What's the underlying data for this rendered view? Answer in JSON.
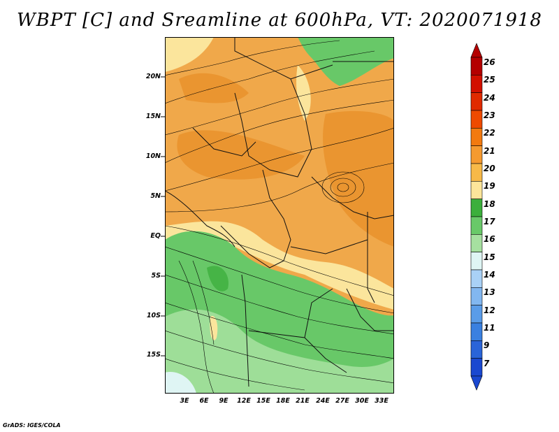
{
  "title": "WBPT [C] and Sreamline at 600hPa, VT: 2020071918",
  "credit": "GrADS: IGES/COLA",
  "map": {
    "lat_labels": [
      "20N",
      "15N",
      "10N",
      "5N",
      "EQ",
      "5S",
      "10S",
      "15S"
    ],
    "lon_labels": [
      "3E",
      "6E",
      "9E",
      "12E",
      "15E",
      "18E",
      "21E",
      "24E",
      "27E",
      "30E",
      "33E"
    ]
  },
  "colorbar": {
    "levels": [
      "26",
      "25",
      "24",
      "23",
      "22",
      "21",
      "20",
      "19",
      "18",
      "17",
      "16",
      "15",
      "14",
      "13",
      "12",
      "11",
      "9",
      "7"
    ],
    "colors": [
      "#b40000",
      "#d21000",
      "#e02a00",
      "#ee4a00",
      "#f27a10",
      "#f59a30",
      "#f7b948",
      "#fde59a",
      "#3caf3c",
      "#69c969",
      "#a6e0a0",
      "#dff5f4",
      "#a9d1f6",
      "#82b7f0",
      "#5a9ce8",
      "#3a80e0",
      "#2a64d8",
      "#1a48d0"
    ]
  },
  "palette": {
    "orange": "#f0a84a",
    "orange_dark": "#ea9530",
    "yellow": "#fbe59c",
    "green": "#68c868",
    "green_light": "#9ede98",
    "green_dark": "#46b446"
  }
}
